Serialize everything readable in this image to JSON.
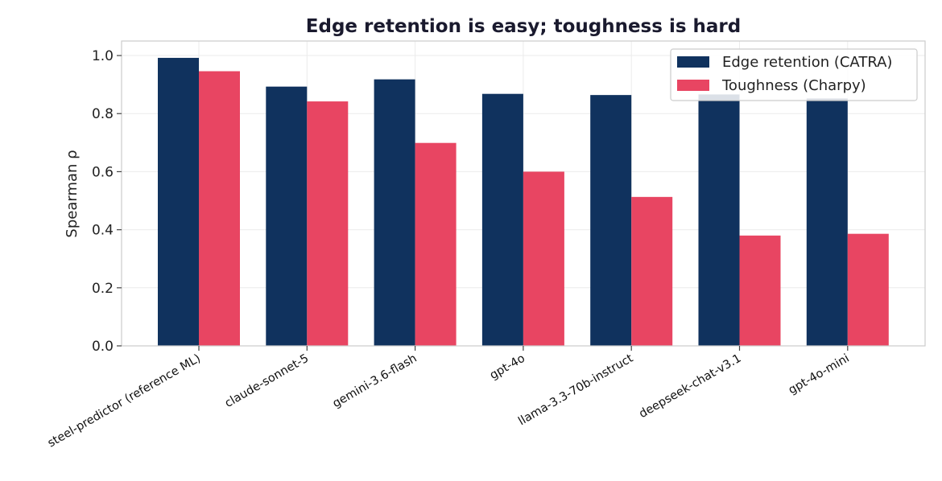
{
  "chart_data": {
    "type": "bar",
    "title": "Edge retention is easy; toughness is hard",
    "ylabel": "Spearman ρ",
    "xlabel": "",
    "categories": [
      "steel-predictor (reference ML)",
      "claude-sonnet-5",
      "gemini-3.6-flash",
      "gpt-4o",
      "llama-3.3-70b-instruct",
      "deepseek-chat-v3.1",
      "gpt-4o-mini"
    ],
    "series": [
      {
        "name": "Edge retention (CATRA)",
        "color": "#10325e",
        "values": [
          0.992,
          0.893,
          0.918,
          0.868,
          0.864,
          0.866,
          0.852
        ]
      },
      {
        "name": "Toughness (Charpy)",
        "color": "#e84562",
        "values": [
          0.946,
          0.842,
          0.699,
          0.6,
          0.513,
          0.38,
          0.386
        ]
      }
    ],
    "ylim": [
      0,
      1.05
    ],
    "yticks": [
      0.0,
      0.2,
      0.4,
      0.6,
      0.8,
      1.0
    ],
    "ytick_labels": [
      "0.0",
      "0.2",
      "0.4",
      "0.6",
      "0.8",
      "1.0"
    ],
    "grid": true,
    "legend_position": "upper-right"
  }
}
